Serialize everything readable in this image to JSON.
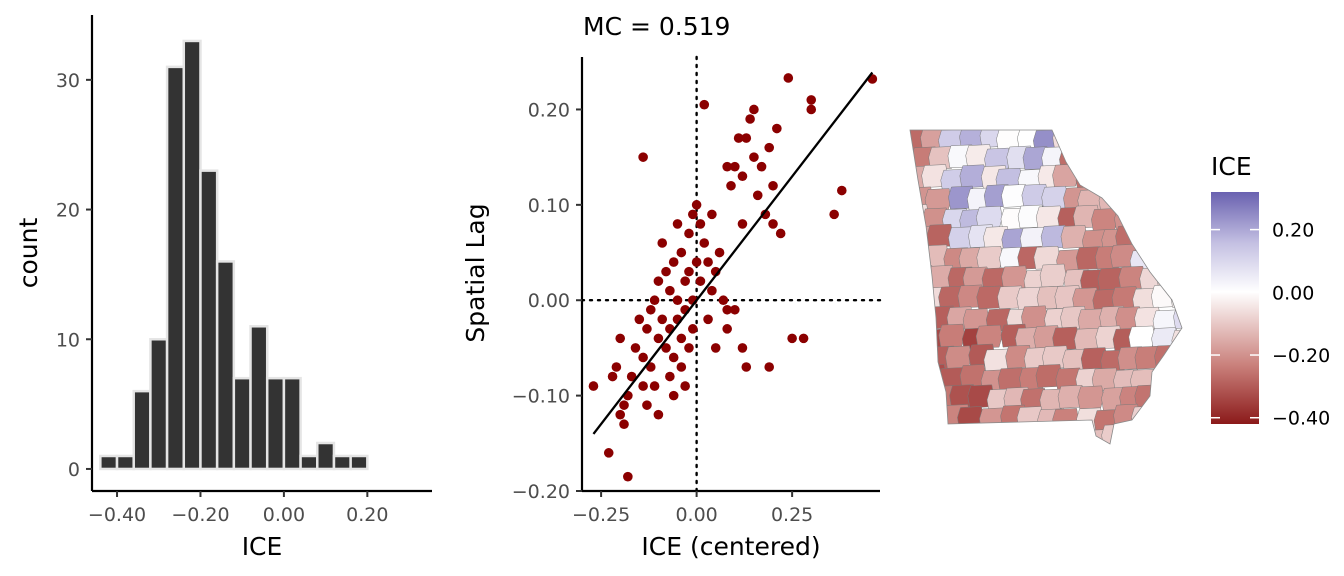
{
  "chart_data": [
    {
      "type": "histogram",
      "xlabel": "ICE",
      "ylabel": "count",
      "xlim": [
        -0.46,
        0.355
      ],
      "ylim": [
        -1.7,
        35
      ],
      "x_ticks": [
        {
          "value": -0.4,
          "label": "−0.40"
        },
        {
          "value": -0.2,
          "label": "−0.20"
        },
        {
          "value": 0.0,
          "label": "0.00"
        },
        {
          "value": 0.2,
          "label": "0.20"
        }
      ],
      "y_ticks": [
        {
          "value": 0,
          "label": "0"
        },
        {
          "value": 10,
          "label": "10"
        },
        {
          "value": 20,
          "label": "20"
        },
        {
          "value": 30,
          "label": "30"
        }
      ],
      "bins": [
        {
          "start": -0.44,
          "end": -0.4,
          "count": 1
        },
        {
          "start": -0.4,
          "end": -0.36,
          "count": 1
        },
        {
          "start": -0.36,
          "end": -0.32,
          "count": 6
        },
        {
          "start": -0.32,
          "end": -0.28,
          "count": 10
        },
        {
          "start": -0.28,
          "end": -0.24,
          "count": 31
        },
        {
          "start": -0.24,
          "end": -0.2,
          "count": 33
        },
        {
          "start": -0.2,
          "end": -0.16,
          "count": 23
        },
        {
          "start": -0.16,
          "end": -0.12,
          "count": 16
        },
        {
          "start": -0.12,
          "end": -0.08,
          "count": 7
        },
        {
          "start": -0.08,
          "end": -0.04,
          "count": 11
        },
        {
          "start": -0.04,
          "end": 0.0,
          "count": 7
        },
        {
          "start": 0.0,
          "end": 0.04,
          "count": 7
        },
        {
          "start": 0.04,
          "end": 0.08,
          "count": 1
        },
        {
          "start": 0.08,
          "end": 0.12,
          "count": 2
        },
        {
          "start": 0.12,
          "end": 0.16,
          "count": 1
        },
        {
          "start": 0.16,
          "end": 0.2,
          "count": 1
        }
      ],
      "colors": {
        "fill": "#333333",
        "outline": "#e5e5e5"
      }
    },
    {
      "type": "scatter",
      "title": "MC = 0.519",
      "xlabel": "ICE (centered)",
      "ylabel": "Spatial Lag",
      "xlim": [
        -0.3,
        0.48
      ],
      "ylim": [
        -0.2,
        0.255
      ],
      "x_ticks": [
        {
          "value": -0.25,
          "label": "−0.25"
        },
        {
          "value": 0.0,
          "label": "0.00"
        },
        {
          "value": 0.25,
          "label": "0.25"
        }
      ],
      "y_ticks": [
        {
          "value": -0.2,
          "label": "−0.20"
        },
        {
          "value": -0.1,
          "label": "−0.10"
        },
        {
          "value": 0.0,
          "label": "0.00"
        },
        {
          "value": 0.1,
          "label": "0.10"
        },
        {
          "value": 0.2,
          "label": "0.20"
        }
      ],
      "reference_lines": {
        "x": 0,
        "y": 0,
        "style": "dotted"
      },
      "fit_line": {
        "slope": 0.519,
        "intercept": 0.0,
        "x_range": [
          -0.27,
          0.46
        ]
      },
      "point_color": "#8b0000",
      "points": [
        [
          -0.27,
          -0.09
        ],
        [
          -0.23,
          -0.16
        ],
        [
          -0.2,
          -0.12
        ],
        [
          -0.18,
          -0.185
        ],
        [
          -0.2,
          -0.04
        ],
        [
          -0.22,
          -0.08
        ],
        [
          -0.21,
          -0.07
        ],
        [
          -0.19,
          -0.11
        ],
        [
          -0.18,
          -0.1
        ],
        [
          -0.17,
          -0.08
        ],
        [
          -0.16,
          -0.05
        ],
        [
          -0.15,
          -0.02
        ],
        [
          -0.14,
          -0.09
        ],
        [
          -0.14,
          -0.06
        ],
        [
          -0.13,
          -0.11
        ],
        [
          -0.13,
          -0.03
        ],
        [
          -0.12,
          -0.07
        ],
        [
          -0.12,
          -0.01
        ],
        [
          -0.11,
          0.0
        ],
        [
          -0.11,
          -0.09
        ],
        [
          -0.1,
          -0.04
        ],
        [
          -0.1,
          0.02
        ],
        [
          -0.1,
          -0.12
        ],
        [
          -0.09,
          -0.02
        ],
        [
          -0.09,
          0.06
        ],
        [
          -0.08,
          -0.05
        ],
        [
          -0.08,
          0.03
        ],
        [
          -0.07,
          -0.08
        ],
        [
          -0.07,
          -0.03
        ],
        [
          -0.07,
          0.01
        ],
        [
          -0.06,
          -0.1
        ],
        [
          -0.06,
          -0.06
        ],
        [
          -0.06,
          0.04
        ],
        [
          -0.05,
          0.0
        ],
        [
          -0.05,
          -0.02
        ],
        [
          -0.05,
          0.08
        ],
        [
          -0.04,
          -0.07
        ],
        [
          -0.04,
          -0.04
        ],
        [
          -0.04,
          0.05
        ],
        [
          -0.03,
          -0.01
        ],
        [
          -0.03,
          0.02
        ],
        [
          -0.03,
          -0.09
        ],
        [
          -0.02,
          0.07
        ],
        [
          -0.02,
          0.03
        ],
        [
          -0.02,
          -0.05
        ],
        [
          -0.01,
          0.09
        ],
        [
          -0.01,
          0.0
        ],
        [
          -0.01,
          -0.03
        ],
        [
          0.0,
          0.04
        ],
        [
          0.0,
          0.1
        ],
        [
          0.01,
          0.08
        ],
        [
          0.01,
          0.02
        ],
        [
          0.02,
          0.205
        ],
        [
          0.02,
          0.06
        ],
        [
          0.03,
          0.04
        ],
        [
          0.03,
          -0.02
        ],
        [
          0.04,
          0.09
        ],
        [
          0.04,
          0.01
        ],
        [
          0.05,
          0.03
        ],
        [
          0.05,
          -0.05
        ],
        [
          0.06,
          0.05
        ],
        [
          0.07,
          0.0
        ],
        [
          0.08,
          0.14
        ],
        [
          0.08,
          -0.03
        ],
        [
          0.09,
          0.12
        ],
        [
          0.1,
          0.14
        ],
        [
          0.1,
          -0.01
        ],
        [
          0.11,
          0.17
        ],
        [
          0.12,
          0.13
        ],
        [
          0.12,
          0.08
        ],
        [
          0.13,
          0.17
        ],
        [
          0.14,
          0.19
        ],
        [
          0.15,
          0.15
        ],
        [
          0.16,
          0.11
        ],
        [
          0.17,
          0.14
        ],
        [
          0.18,
          0.09
        ],
        [
          0.19,
          0.16
        ],
        [
          0.2,
          0.12
        ],
        [
          0.21,
          0.18
        ],
        [
          0.22,
          0.07
        ],
        [
          0.24,
          0.233
        ],
        [
          0.25,
          -0.04
        ],
        [
          0.28,
          -0.04
        ],
        [
          0.3,
          0.21
        ],
        [
          0.3,
          0.2
        ],
        [
          0.36,
          0.09
        ],
        [
          0.38,
          0.115
        ],
        [
          0.46,
          0.232
        ],
        [
          -0.14,
          0.15
        ],
        [
          -0.19,
          -0.13
        ],
        [
          0.13,
          -0.07
        ],
        [
          0.19,
          -0.07
        ],
        [
          0.15,
          0.2
        ],
        [
          0.2,
          0.08
        ],
        [
          0.08,
          -0.01
        ],
        [
          0.12,
          -0.05
        ]
      ]
    },
    {
      "type": "choropleth",
      "legend": {
        "title": "ICE",
        "position": "right",
        "colors": [
          "#8b1a1a",
          "#c97f7a",
          "#ffffff",
          "#c4c0e2",
          "#6961b0"
        ],
        "range": [
          -0.42,
          0.32
        ],
        "ticks": [
          {
            "value": 0.2,
            "label": "0.20"
          },
          {
            "value": 0.0,
            "label": "0.00"
          },
          {
            "value": -0.2,
            "label": "−0.20"
          },
          {
            "value": -0.4,
            "label": "−0.40"
          }
        ]
      },
      "outline": "#666666"
    }
  ]
}
